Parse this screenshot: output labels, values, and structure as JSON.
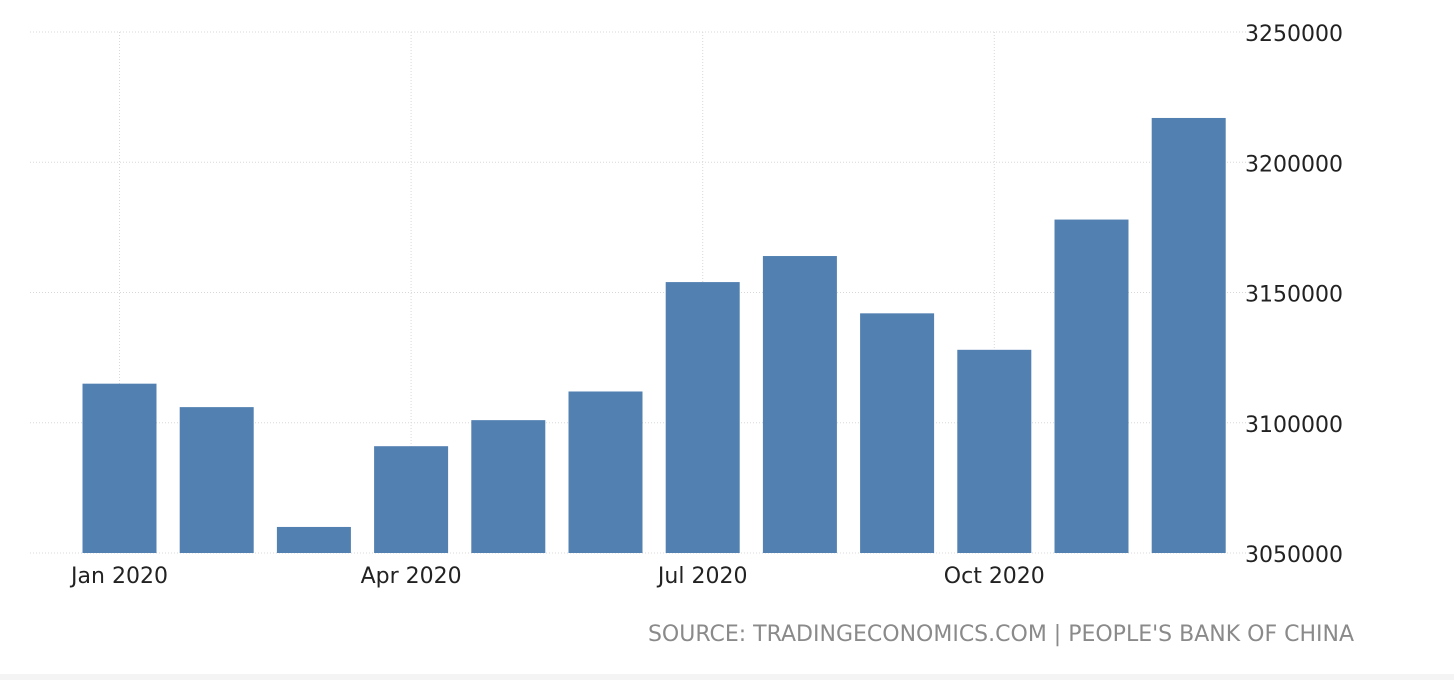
{
  "chart_data": {
    "type": "bar",
    "categories": [
      "Jan 2020",
      "Feb 2020",
      "Mar 2020",
      "Apr 2020",
      "May 2020",
      "Jun 2020",
      "Jul 2020",
      "Aug 2020",
      "Sep 2020",
      "Oct 2020",
      "Nov 2020",
      "Dec 2020"
    ],
    "x_tick_labels": [
      "Jan 2020",
      "Apr 2020",
      "Jul 2020",
      "Oct 2020"
    ],
    "values": [
      3115000,
      3106000,
      3060000,
      3091000,
      3101000,
      3112000,
      3154000,
      3164000,
      3142000,
      3128000,
      3178000,
      3217000
    ],
    "ylim": [
      3050000,
      3250000
    ],
    "y_ticks": [
      3050000,
      3100000,
      3150000,
      3200000,
      3250000
    ],
    "y_axis_position": "right",
    "grid": true,
    "bar_color": "#5280b1",
    "grid_color": "#d8d8d8",
    "title": "",
    "xlabel": "",
    "ylabel": ""
  },
  "source": "SOURCE: TRADINGECONOMICS.COM | PEOPLE'S BANK OF CHINA"
}
